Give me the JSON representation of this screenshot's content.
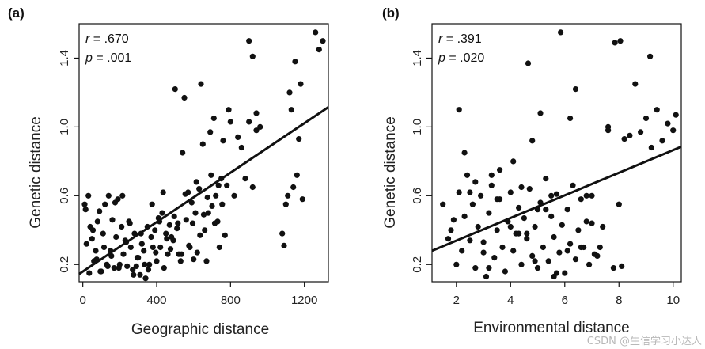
{
  "watermark": "CSDN @生信学习小达人",
  "chart_data": [
    {
      "type": "scatter",
      "panel_label": "(a)",
      "xlabel": "Geographic distance",
      "ylabel": "Genetic distance",
      "xlim": [
        -20,
        1330
      ],
      "ylim": [
        0.1,
        1.6
      ],
      "xticks": [
        0,
        400,
        800,
        1200
      ],
      "xtick_labels": [
        "0",
        "400",
        "800",
        "1200"
      ],
      "yticks": [
        0.2,
        0.6,
        1.0,
        1.4
      ],
      "ytick_labels": [
        "0.2",
        "0.6",
        "1.0",
        "1.4"
      ],
      "stats": {
        "r_label": "r",
        "r_value": " = .670",
        "p_label": "p",
        "p_value": " = .001"
      },
      "fit_line": {
        "x": [
          -20,
          1330
        ],
        "y": [
          0.145,
          1.115
        ]
      },
      "points": {
        "x": [
          10,
          20,
          30,
          40,
          50,
          60,
          70,
          80,
          90,
          100,
          110,
          120,
          130,
          140,
          150,
          160,
          170,
          180,
          190,
          200,
          210,
          220,
          230,
          240,
          250,
          260,
          270,
          280,
          290,
          300,
          310,
          320,
          330,
          340,
          350,
          360,
          370,
          380,
          390,
          400,
          410,
          420,
          430,
          440,
          450,
          460,
          470,
          480,
          490,
          500,
          510,
          520,
          530,
          540,
          550,
          560,
          570,
          580,
          590,
          600,
          610,
          620,
          630,
          640,
          650,
          660,
          670,
          680,
          690,
          700,
          710,
          720,
          730,
          740,
          750,
          760,
          770,
          780,
          790,
          800,
          820,
          840,
          860,
          880,
          900,
          920,
          940,
          960,
          1080,
          1090,
          1100,
          1110,
          1120,
          1130,
          1140,
          1150,
          1160,
          1170,
          1180,
          1190,
          1260,
          1280,
          1300,
          15,
          35,
          55,
          75,
          95,
          115,
          135,
          155,
          175,
          195,
          215,
          235,
          255,
          275,
          295,
          315,
          335,
          355,
          375,
          395,
          415,
          435,
          455,
          475,
          495,
          515,
          535,
          555,
          575,
          595,
          615,
          635,
          655,
          675,
          695,
          715,
          735,
          755,
          900,
          920,
          940
        ],
        "y": [
          0.55,
          0.32,
          0.6,
          0.42,
          0.35,
          0.22,
          0.28,
          0.45,
          0.51,
          0.16,
          0.38,
          0.55,
          0.2,
          0.6,
          0.28,
          0.46,
          0.18,
          0.36,
          0.58,
          0.2,
          0.42,
          0.26,
          0.34,
          0.19,
          0.45,
          0.3,
          0.17,
          0.38,
          0.19,
          0.24,
          0.14,
          0.32,
          0.28,
          0.12,
          0.42,
          0.2,
          0.36,
          0.3,
          0.4,
          0.22,
          0.47,
          0.3,
          0.5,
          0.18,
          0.38,
          0.26,
          0.43,
          0.36,
          0.34,
          1.22,
          0.41,
          0.26,
          0.22,
          0.85,
          1.17,
          0.46,
          0.62,
          0.3,
          0.56,
          0.23,
          0.5,
          0.27,
          0.64,
          1.25,
          0.9,
          0.4,
          0.22,
          0.5,
          0.97,
          0.54,
          1.05,
          0.6,
          0.45,
          0.3,
          0.7,
          0.92,
          0.37,
          0.66,
          1.1,
          1.03,
          0.6,
          0.94,
          0.88,
          0.7,
          1.03,
          0.65,
          0.98,
          1.0,
          0.38,
          0.31,
          0.55,
          0.6,
          1.2,
          1.1,
          0.65,
          1.38,
          0.72,
          0.93,
          1.25,
          0.58,
          1.55,
          1.45,
          1.5,
          0.52,
          0.15,
          0.4,
          0.23,
          0.16,
          0.3,
          0.19,
          0.25,
          0.56,
          0.18,
          0.6,
          0.33,
          0.44,
          0.14,
          0.24,
          0.38,
          0.2,
          0.17,
          0.55,
          0.27,
          0.45,
          0.62,
          0.35,
          0.29,
          0.48,
          0.44,
          0.26,
          0.61,
          0.31,
          0.44,
          0.68,
          0.37,
          0.49,
          0.59,
          0.72,
          0.44,
          0.66,
          0.55,
          1.5,
          1.41,
          1.08
        ]
      }
    },
    {
      "type": "scatter",
      "panel_label": "(b)",
      "xlabel": "Environmental distance",
      "ylabel": "Genetic distance",
      "xlim": [
        1.1,
        10.3
      ],
      "ylim": [
        0.1,
        1.6
      ],
      "xticks": [
        2,
        4,
        6,
        8,
        10
      ],
      "xtick_labels": [
        "2",
        "4",
        "6",
        "8",
        "10"
      ],
      "yticks": [
        0.2,
        0.6,
        1.0,
        1.4
      ],
      "ytick_labels": [
        "0.2",
        "0.6",
        "1.0",
        "1.4"
      ],
      "stats": {
        "r_label": "r",
        "r_value": " = .391",
        "p_label": "p",
        "p_value": " = .020"
      },
      "fit_line": {
        "x": [
          1.1,
          10.3
        ],
        "y": [
          0.28,
          0.885
        ]
      },
      "points": {
        "x": [
          1.5,
          1.7,
          1.9,
          2.0,
          2.1,
          2.2,
          2.3,
          2.4,
          2.5,
          2.6,
          2.7,
          2.8,
          2.9,
          3.0,
          3.1,
          3.2,
          3.3,
          3.4,
          3.5,
          3.6,
          3.7,
          3.8,
          3.9,
          4.0,
          4.1,
          4.2,
          4.3,
          4.4,
          4.5,
          4.6,
          4.7,
          4.8,
          4.9,
          5.0,
          5.1,
          5.2,
          5.3,
          5.4,
          5.5,
          5.6,
          5.7,
          5.8,
          5.9,
          6.0,
          6.1,
          6.2,
          6.3,
          6.4,
          6.5,
          6.6,
          6.7,
          6.8,
          6.9,
          7.0,
          7.2,
          7.4,
          7.6,
          7.8,
          8.0,
          8.2,
          8.4,
          8.6,
          8.8,
          9.0,
          9.2,
          9.4,
          9.6,
          9.8,
          10.0,
          10.1,
          2.1,
          2.3,
          2.7,
          3.2,
          3.6,
          4.1,
          4.6,
          5.1,
          5.6,
          6.1,
          6.6,
          7.1,
          7.6,
          8.1,
          4.65,
          5.85,
          7.85,
          8.05,
          9.15,
          1.8,
          2.5,
          3.0,
          3.5,
          4.0,
          4.4,
          4.9,
          5.3,
          5.7,
          6.2,
          6.8,
          7.3,
          3.3,
          4.8,
          5.5,
          6.4,
          7.0,
          5.0,
          4.3
        ],
        "y": [
          0.55,
          0.35,
          0.46,
          0.2,
          0.62,
          0.28,
          0.48,
          0.72,
          0.34,
          0.55,
          0.18,
          0.42,
          0.6,
          0.33,
          0.13,
          0.5,
          0.66,
          0.24,
          0.4,
          0.58,
          0.3,
          0.16,
          0.45,
          0.62,
          0.28,
          0.38,
          0.53,
          0.2,
          0.47,
          0.35,
          0.64,
          0.25,
          0.42,
          0.18,
          0.56,
          0.3,
          0.7,
          0.22,
          0.48,
          0.36,
          0.61,
          0.27,
          0.43,
          0.15,
          0.52,
          0.32,
          0.66,
          0.23,
          0.4,
          0.58,
          0.3,
          0.45,
          0.2,
          0.6,
          0.25,
          0.42,
          0.98,
          0.18,
          0.55,
          0.93,
          0.95,
          1.25,
          0.97,
          1.05,
          0.88,
          1.1,
          0.92,
          1.02,
          0.98,
          1.07,
          1.1,
          0.85,
          0.68,
          0.18,
          0.75,
          0.8,
          0.38,
          1.08,
          0.13,
          0.28,
          0.3,
          0.26,
          1.0,
          0.19,
          1.37,
          1.55,
          1.49,
          1.5,
          1.41,
          0.4,
          0.62,
          0.27,
          0.58,
          0.42,
          0.65,
          0.22,
          0.52,
          0.15,
          1.05,
          0.6,
          0.3,
          0.72,
          0.92,
          0.6,
          1.22,
          0.44,
          0.52,
          0.38
        ]
      }
    }
  ]
}
